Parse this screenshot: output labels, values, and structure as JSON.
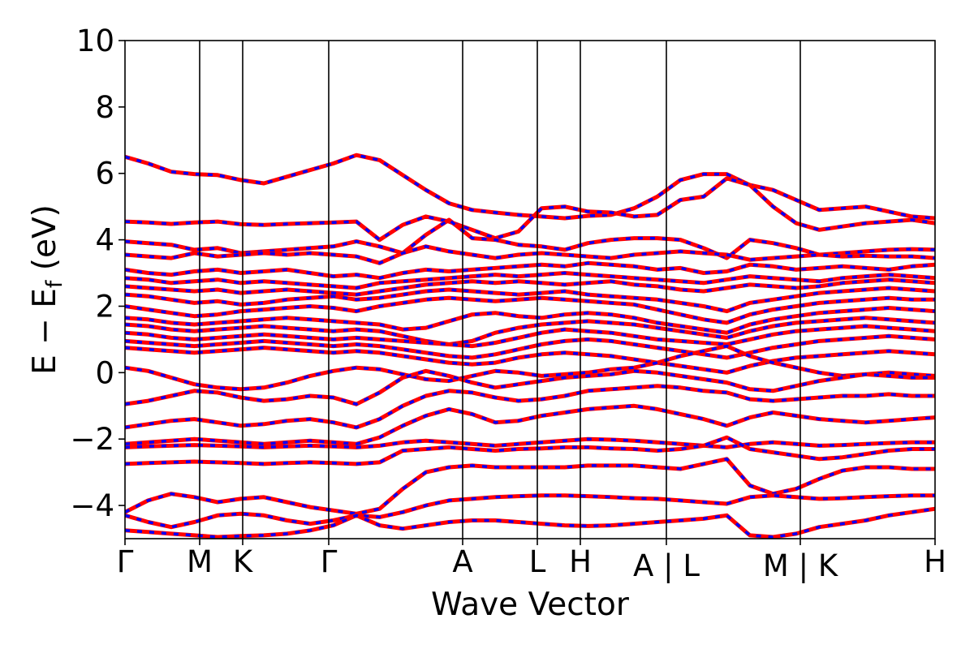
{
  "chart_data": {
    "type": "line",
    "title": "",
    "xlabel": "Wave Vector",
    "ylabel_main": "E − E",
    "ylabel_sub": "f",
    "ylabel_unit": " (eV)",
    "ylim": [
      -5,
      10
    ],
    "yticks": [
      -4,
      -2,
      0,
      2,
      4,
      6,
      8,
      10
    ],
    "ytick_labels": [
      "−4",
      "−2",
      "0",
      "2",
      "4",
      "6",
      "8",
      "10"
    ],
    "x_path": [
      0,
      0.92,
      1.45,
      2.51,
      4.16,
      5.08,
      5.61,
      6.67,
      8.32,
      9.98
    ],
    "kpoint_labels": [
      "Γ",
      "M",
      "K",
      "Γ",
      "A",
      "L",
      "H",
      "A | L",
      "M | K",
      "H"
    ],
    "grid": false,
    "colors": {
      "spin_up": "#ff0000",
      "spin_down": "#0000ff"
    },
    "series": [
      {
        "kind": "spin-up / spin-down (overlapping)",
        "values": [
          [
            6.5,
            6.3,
            6.05,
            5.98,
            5.95,
            5.8,
            5.7,
            5.9,
            6.1,
            6.3,
            6.55,
            6.4,
            5.95,
            5.5,
            5.1,
            4.9,
            4.82,
            4.75,
            4.7,
            4.65,
            4.72,
            4.75,
            4.95,
            5.3,
            5.8,
            5.98,
            5.98,
            5.65,
            5.5,
            5.2,
            4.9,
            4.95,
            5.0,
            4.85,
            4.7,
            4.65
          ],
          [
            4.55,
            4.52,
            4.48,
            4.52,
            4.55,
            4.47,
            4.45,
            4.48,
            4.5,
            4.52,
            4.55,
            4.0,
            4.45,
            4.7,
            4.55,
            4.3,
            4.05,
            4.25,
            4.95,
            5.0,
            4.85,
            4.82,
            4.7,
            4.75,
            5.2,
            5.3,
            5.85,
            5.65,
            5.0,
            4.5,
            4.3,
            4.4,
            4.5,
            4.55,
            4.6,
            4.5
          ],
          [
            3.95,
            3.9,
            3.85,
            3.7,
            3.75,
            3.6,
            3.65,
            3.7,
            3.75,
            3.8,
            3.95,
            3.8,
            3.6,
            4.15,
            4.6,
            4.05,
            4.0,
            3.85,
            3.8,
            3.7,
            3.9,
            4.0,
            4.05,
            4.05,
            4.0,
            3.75,
            3.45,
            4.0,
            3.9,
            3.75,
            3.55,
            3.6,
            3.65,
            3.7,
            3.72,
            3.7
          ],
          [
            3.55,
            3.5,
            3.45,
            3.6,
            3.5,
            3.55,
            3.6,
            3.55,
            3.6,
            3.55,
            3.5,
            3.3,
            3.6,
            3.8,
            3.65,
            3.55,
            3.45,
            3.55,
            3.6,
            3.55,
            3.5,
            3.45,
            3.55,
            3.6,
            3.65,
            3.6,
            3.55,
            3.4,
            3.45,
            3.5,
            3.55,
            3.5,
            3.52,
            3.5,
            3.5,
            3.45
          ],
          [
            3.1,
            3.0,
            2.95,
            3.05,
            3.1,
            3.0,
            3.05,
            3.1,
            3.0,
            2.9,
            2.95,
            2.85,
            3.0,
            3.1,
            3.05,
            3.1,
            3.15,
            3.2,
            3.25,
            3.2,
            3.3,
            3.25,
            3.2,
            3.1,
            3.15,
            3.0,
            3.05,
            3.25,
            3.2,
            3.1,
            3.15,
            3.2,
            3.15,
            3.1,
            3.2,
            3.25
          ],
          [
            2.85,
            2.8,
            2.7,
            2.75,
            2.8,
            2.7,
            2.75,
            2.7,
            2.65,
            2.6,
            2.55,
            2.7,
            2.75,
            2.8,
            2.85,
            2.9,
            2.95,
            2.9,
            2.95,
            3.0,
            2.95,
            2.9,
            2.85,
            2.8,
            2.75,
            2.7,
            2.8,
            2.9,
            2.85,
            2.8,
            2.75,
            2.85,
            2.9,
            2.95,
            2.9,
            2.85
          ],
          [
            2.6,
            2.55,
            2.5,
            2.45,
            2.5,
            2.4,
            2.45,
            2.5,
            2.45,
            2.4,
            2.35,
            2.45,
            2.55,
            2.65,
            2.7,
            2.75,
            2.7,
            2.75,
            2.7,
            2.65,
            2.7,
            2.75,
            2.65,
            2.6,
            2.5,
            2.45,
            2.55,
            2.65,
            2.6,
            2.55,
            2.6,
            2.7,
            2.75,
            2.8,
            2.75,
            2.7
          ],
          [
            2.35,
            2.3,
            2.2,
            2.1,
            2.15,
            2.05,
            2.1,
            2.2,
            2.25,
            2.3,
            2.2,
            2.25,
            2.35,
            2.45,
            2.5,
            2.45,
            2.4,
            2.35,
            2.4,
            2.45,
            2.35,
            2.3,
            2.25,
            2.2,
            2.1,
            2.0,
            1.85,
            2.1,
            2.2,
            2.3,
            2.4,
            2.45,
            2.5,
            2.55,
            2.5,
            2.45
          ],
          [
            2.0,
            1.9,
            1.8,
            1.7,
            1.75,
            1.85,
            1.9,
            1.95,
            2.0,
            1.95,
            1.85,
            2.0,
            2.1,
            2.2,
            2.25,
            2.2,
            2.15,
            2.2,
            2.25,
            2.2,
            2.15,
            2.1,
            2.05,
            1.9,
            1.75,
            1.6,
            1.5,
            1.75,
            1.9,
            2.0,
            2.1,
            2.15,
            2.2,
            2.25,
            2.2,
            2.2
          ],
          [
            1.65,
            1.6,
            1.5,
            1.45,
            1.5,
            1.55,
            1.6,
            1.65,
            1.6,
            1.55,
            1.5,
            1.45,
            1.3,
            1.35,
            1.55,
            1.75,
            1.8,
            1.7,
            1.65,
            1.75,
            1.8,
            1.75,
            1.65,
            1.5,
            1.4,
            1.3,
            1.2,
            1.45,
            1.6,
            1.7,
            1.8,
            1.85,
            1.9,
            1.95,
            1.9,
            1.85
          ],
          [
            1.45,
            1.4,
            1.3,
            1.25,
            1.3,
            1.35,
            1.4,
            1.35,
            1.3,
            1.25,
            1.3,
            1.25,
            1.1,
            0.95,
            0.85,
            0.95,
            1.2,
            1.35,
            1.45,
            1.5,
            1.55,
            1.5,
            1.45,
            1.35,
            1.25,
            1.15,
            1.05,
            1.25,
            1.4,
            1.5,
            1.55,
            1.6,
            1.65,
            1.6,
            1.55,
            1.5
          ],
          [
            1.2,
            1.15,
            1.05,
            1.0,
            1.05,
            1.1,
            1.15,
            1.1,
            1.05,
            1.0,
            1.05,
            1.0,
            0.95,
            0.9,
            0.85,
            0.8,
            0.9,
            1.05,
            1.2,
            1.3,
            1.25,
            1.2,
            1.1,
            1.0,
            0.95,
            0.9,
            0.85,
            1.0,
            1.15,
            1.25,
            1.3,
            1.35,
            1.4,
            1.35,
            1.3,
            1.25
          ],
          [
            0.95,
            0.9,
            0.85,
            0.8,
            0.85,
            0.9,
            0.95,
            0.9,
            0.85,
            0.8,
            0.85,
            0.8,
            0.7,
            0.6,
            0.5,
            0.45,
            0.55,
            0.7,
            0.85,
            0.95,
            1.0,
            0.95,
            0.85,
            0.75,
            0.65,
            0.55,
            0.45,
            0.6,
            0.75,
            0.85,
            0.95,
            1.0,
            1.05,
            1.1,
            1.05,
            1.0
          ],
          [
            0.75,
            0.7,
            0.65,
            0.6,
            0.65,
            0.7,
            0.75,
            0.7,
            0.65,
            0.6,
            0.65,
            0.6,
            0.5,
            0.4,
            0.3,
            0.25,
            0.3,
            0.45,
            0.55,
            0.6,
            0.55,
            0.5,
            0.4,
            0.3,
            0.2,
            0.1,
            0.0,
            0.2,
            0.35,
            0.45,
            0.5,
            0.55,
            0.6,
            0.65,
            0.6,
            0.55
          ],
          [
            0.15,
            0.05,
            -0.15,
            -0.35,
            -0.45,
            -0.5,
            -0.45,
            -0.3,
            -0.1,
            0.05,
            0.15,
            0.1,
            -0.05,
            -0.2,
            -0.25,
            -0.1,
            0.05,
            0.0,
            -0.1,
            -0.05,
            0.0,
            0.1,
            0.15,
            0.3,
            0.5,
            0.65,
            0.8,
            0.5,
            0.3,
            0.15,
            0.0,
            -0.1,
            -0.05,
            0.0,
            -0.05,
            -0.1
          ],
          [
            -0.95,
            -0.85,
            -0.7,
            -0.55,
            -0.6,
            -0.75,
            -0.85,
            -0.8,
            -0.7,
            -0.75,
            -0.95,
            -0.6,
            -0.15,
            0.05,
            -0.1,
            -0.3,
            -0.45,
            -0.35,
            -0.25,
            -0.15,
            -0.1,
            -0.05,
            0.05,
            0.0,
            -0.1,
            -0.2,
            -0.3,
            -0.5,
            -0.55,
            -0.4,
            -0.25,
            -0.15,
            -0.05,
            -0.1,
            -0.15,
            -0.15
          ],
          [
            -1.65,
            -1.55,
            -1.45,
            -1.4,
            -1.5,
            -1.6,
            -1.55,
            -1.45,
            -1.4,
            -1.5,
            -1.65,
            -1.4,
            -1.0,
            -0.7,
            -0.55,
            -0.6,
            -0.75,
            -0.85,
            -0.8,
            -0.7,
            -0.55,
            -0.5,
            -0.45,
            -0.4,
            -0.45,
            -0.55,
            -0.6,
            -0.8,
            -0.85,
            -0.8,
            -0.75,
            -0.7,
            -0.7,
            -0.65,
            -0.7,
            -0.7
          ],
          [
            -2.15,
            -2.1,
            -2.05,
            -2.0,
            -2.05,
            -2.1,
            -2.15,
            -2.1,
            -2.05,
            -2.1,
            -2.15,
            -1.95,
            -1.6,
            -1.3,
            -1.1,
            -1.25,
            -1.5,
            -1.45,
            -1.3,
            -1.2,
            -1.1,
            -1.05,
            -1.0,
            -1.1,
            -1.25,
            -1.4,
            -1.6,
            -1.35,
            -1.2,
            -1.3,
            -1.4,
            -1.45,
            -1.5,
            -1.45,
            -1.4,
            -1.35
          ],
          [
            -2.25,
            -2.22,
            -2.2,
            -2.18,
            -2.2,
            -2.22,
            -2.25,
            -2.22,
            -2.2,
            -2.22,
            -2.25,
            -2.2,
            -2.1,
            -2.05,
            -2.1,
            -2.15,
            -2.2,
            -2.15,
            -2.1,
            -2.05,
            -2.0,
            -2.02,
            -2.05,
            -2.1,
            -2.15,
            -2.2,
            -2.25,
            -2.15,
            -2.1,
            -2.15,
            -2.2,
            -2.18,
            -2.15,
            -2.12,
            -2.1,
            -2.1
          ],
          [
            -2.75,
            -2.72,
            -2.7,
            -2.68,
            -2.7,
            -2.72,
            -2.75,
            -2.72,
            -2.7,
            -2.72,
            -2.75,
            -2.7,
            -2.35,
            -2.3,
            -2.25,
            -2.3,
            -2.35,
            -2.3,
            -2.28,
            -2.25,
            -2.25,
            -2.28,
            -2.3,
            -2.35,
            -2.3,
            -2.2,
            -1.95,
            -2.3,
            -2.4,
            -2.5,
            -2.6,
            -2.55,
            -2.45,
            -2.35,
            -2.3,
            -2.3
          ],
          [
            -4.2,
            -3.85,
            -3.65,
            -3.75,
            -3.9,
            -3.8,
            -3.75,
            -3.9,
            -4.05,
            -4.15,
            -4.25,
            -4.1,
            -3.5,
            -3.0,
            -2.85,
            -2.8,
            -2.85,
            -2.85,
            -2.85,
            -2.85,
            -2.8,
            -2.8,
            -2.8,
            -2.85,
            -2.9,
            -2.75,
            -2.6,
            -3.4,
            -3.65,
            -3.5,
            -3.2,
            -2.95,
            -2.85,
            -2.85,
            -2.9,
            -2.9
          ],
          [
            -4.3,
            -4.5,
            -4.65,
            -4.5,
            -4.3,
            -4.25,
            -4.3,
            -4.45,
            -4.55,
            -4.45,
            -4.3,
            -4.35,
            -4.2,
            -4.0,
            -3.85,
            -3.8,
            -3.75,
            -3.72,
            -3.7,
            -3.7,
            -3.72,
            -3.75,
            -3.78,
            -3.8,
            -3.85,
            -3.9,
            -3.95,
            -3.75,
            -3.7,
            -3.75,
            -3.8,
            -3.78,
            -3.75,
            -3.72,
            -3.7,
            -3.7
          ],
          [
            -4.75,
            -4.8,
            -4.85,
            -4.9,
            -4.95,
            -4.92,
            -4.9,
            -4.85,
            -4.75,
            -4.6,
            -4.3,
            -4.6,
            -4.7,
            -4.6,
            -4.5,
            -4.45,
            -4.45,
            -4.5,
            -4.55,
            -4.6,
            -4.62,
            -4.6,
            -4.55,
            -4.5,
            -4.45,
            -4.4,
            -4.3,
            -4.9,
            -4.95,
            -4.85,
            -4.65,
            -4.55,
            -4.45,
            -4.3,
            -4.2,
            -4.1
          ]
        ]
      }
    ]
  }
}
